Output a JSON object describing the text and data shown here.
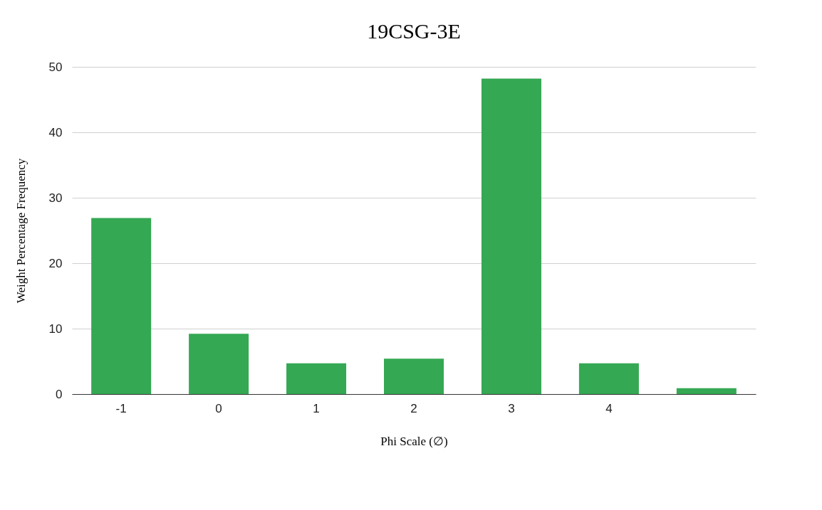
{
  "chart_data": {
    "type": "bar",
    "title": "19CSG-3E",
    "xlabel": "Phi Scale (∅)",
    "ylabel": "Weight Percentage Frequency",
    "categories": [
      "-1",
      "0",
      "1",
      "2",
      "3",
      "4",
      null
    ],
    "values": [
      26.9,
      9.2,
      4.7,
      5.4,
      48.2,
      4.7,
      0.9
    ],
    "color": "#34a853",
    "ylim": [
      0,
      50
    ],
    "yticks": [
      0,
      10,
      20,
      30,
      40,
      50
    ],
    "grid": "y"
  }
}
